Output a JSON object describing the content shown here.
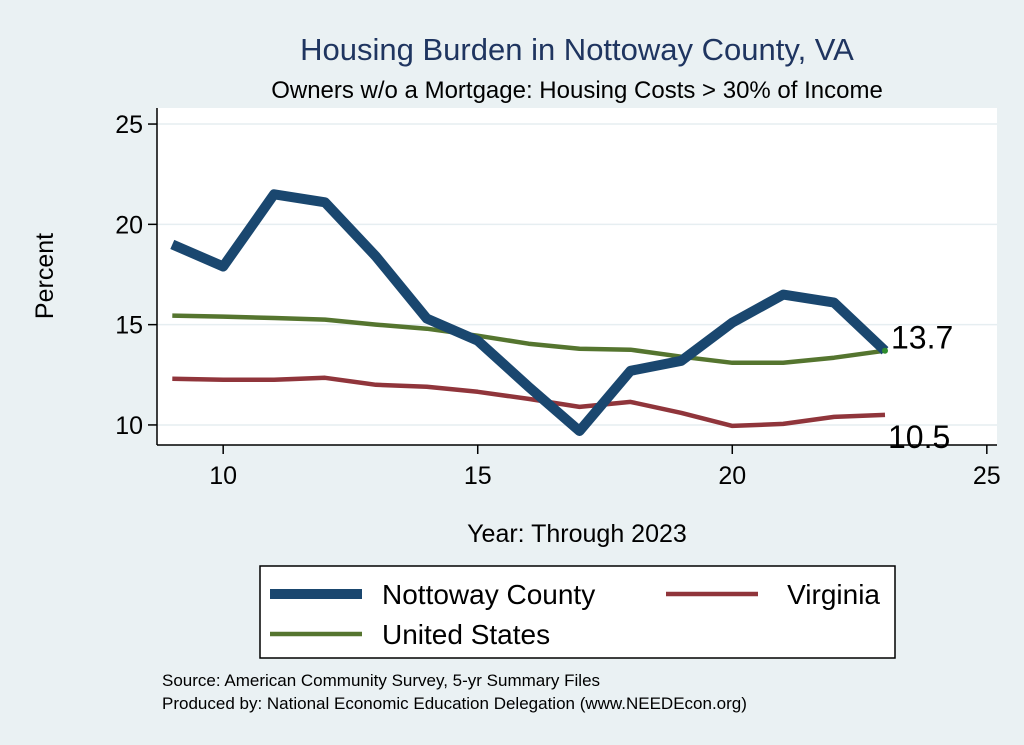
{
  "chart_data": {
    "type": "line",
    "title": "Housing Burden in Nottoway County, VA",
    "subtitle": "Owners w/o a Mortgage: Housing Costs > 30% of Income",
    "xlabel": "Year: Through 2023",
    "ylabel": "Percent",
    "xlim": [
      8.7,
      25.2
    ],
    "ylim": [
      9.0,
      25.8
    ],
    "xticks": [
      10,
      15,
      20,
      25
    ],
    "yticks": [
      10,
      15,
      20,
      25
    ],
    "grid": true,
    "legend_position": "bottom",
    "x": [
      9,
      10,
      11,
      12,
      13,
      14,
      15,
      16,
      17,
      18,
      19,
      20,
      21,
      22,
      23
    ],
    "series": [
      {
        "name": "Nottoway County",
        "color": "#1a476f",
        "values": [
          19.0,
          17.9,
          21.5,
          21.1,
          18.4,
          15.3,
          14.2,
          11.9,
          9.7,
          12.7,
          13.2,
          15.1,
          16.5,
          16.1,
          13.7
        ]
      },
      {
        "name": "Virginia",
        "color": "#90353b",
        "values": [
          12.3,
          12.25,
          12.25,
          12.35,
          12.0,
          11.9,
          11.65,
          11.3,
          10.9,
          11.15,
          10.6,
          9.95,
          10.05,
          10.4,
          10.5
        ]
      },
      {
        "name": "United States",
        "color": "#55752f",
        "values": [
          15.45,
          15.4,
          15.33,
          15.25,
          15.0,
          14.8,
          14.45,
          14.05,
          13.8,
          13.75,
          13.4,
          13.1,
          13.1,
          13.35,
          13.7
        ]
      }
    ],
    "end_labels": [
      "13.7",
      "10.5"
    ]
  },
  "notes": {
    "source": "Source: American Community Survey, 5-yr Summary Files",
    "produced": "Produced by: National Economic Education Delegation (www.NEEDEcon.org)"
  }
}
